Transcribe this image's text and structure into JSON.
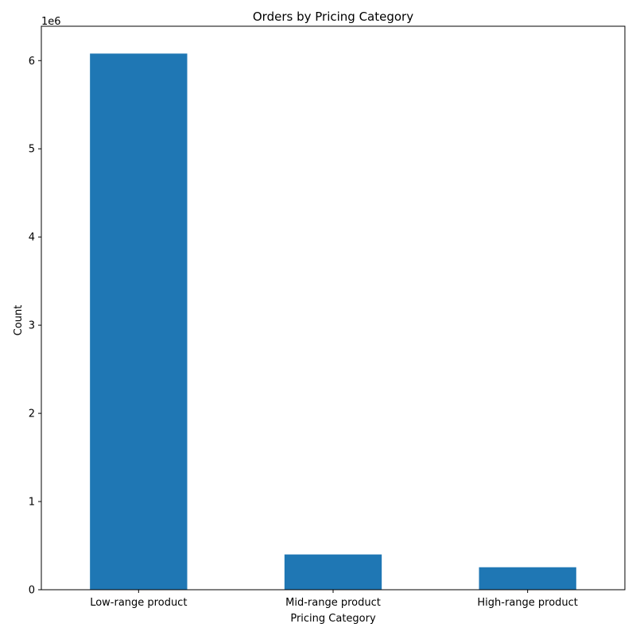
{
  "chart_data": {
    "type": "bar",
    "title": "Orders by Pricing Category",
    "xlabel": "Pricing Category",
    "ylabel": "Count",
    "y_offset_label": "1e6",
    "categories": [
      "Low-range product",
      "Mid-range product",
      "High-range product"
    ],
    "values": [
      6080000,
      400000,
      255000
    ],
    "ylim": [
      0,
      6390000
    ],
    "yticks": [
      0,
      1000000,
      2000000,
      3000000,
      4000000,
      5000000,
      6000000
    ],
    "ytick_labels": [
      "0",
      "1",
      "2",
      "3",
      "4",
      "5",
      "6"
    ],
    "bar_color": "#1f77b4",
    "grid": false,
    "legend": "none"
  }
}
